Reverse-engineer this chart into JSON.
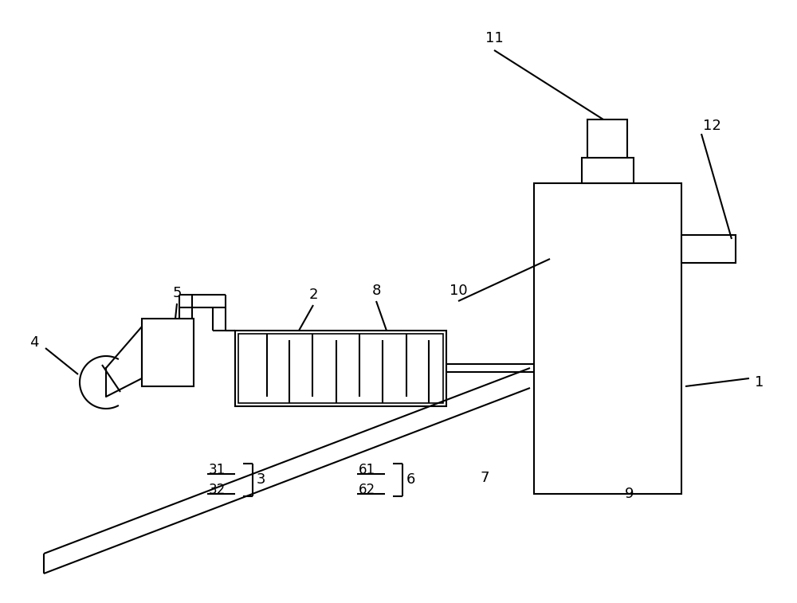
{
  "bg_color": "#ffffff",
  "line_color": "#000000",
  "lw": 1.5,
  "fig_w": 10.0,
  "fig_h": 7.57,
  "dpi": 100
}
